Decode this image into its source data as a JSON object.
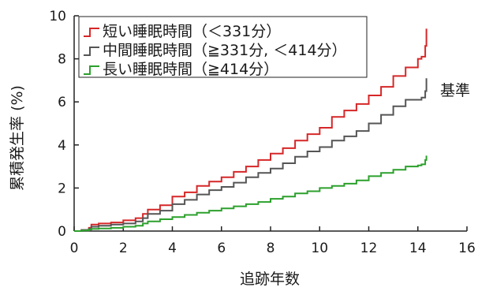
{
  "chart_data": {
    "type": "line",
    "xlabel": "追跡年数",
    "ylabel": "累積発生率 (%)",
    "xlim": [
      0,
      16
    ],
    "ylim": [
      0,
      10
    ],
    "xticks": [
      "0",
      "2",
      "4",
      "6",
      "8",
      "10",
      "12",
      "14",
      "16"
    ],
    "yticks": [
      "0",
      "2",
      "4",
      "6",
      "8",
      "10"
    ],
    "annotation": "基準",
    "legend_position": "top-left",
    "grid": false,
    "series": [
      {
        "name": "短い睡眠時間（＜331分）",
        "color": "#d62728",
        "x": [
          0,
          0.3,
          0.6,
          0.7,
          1.0,
          1.5,
          2.0,
          2.5,
          2.8,
          3.0,
          3.5,
          4.0,
          4.5,
          5.0,
          5.5,
          6.0,
          6.5,
          7.0,
          7.5,
          8.0,
          8.5,
          9.0,
          9.5,
          10.0,
          10.5,
          11.0,
          11.5,
          12.0,
          12.5,
          13.0,
          13.5,
          14.0,
          14.15,
          14.3,
          14.35
        ],
        "values": [
          0,
          0.05,
          0.15,
          0.3,
          0.35,
          0.4,
          0.5,
          0.6,
          0.8,
          1.0,
          1.2,
          1.6,
          1.8,
          2.1,
          2.3,
          2.5,
          2.75,
          3.0,
          3.3,
          3.6,
          3.85,
          4.2,
          4.5,
          4.8,
          5.3,
          5.6,
          5.9,
          6.3,
          6.7,
          7.2,
          7.6,
          8.0,
          8.1,
          8.6,
          9.4
        ]
      },
      {
        "name": "中間睡眠時間（≧331分, ＜414分）",
        "color": "#555555",
        "x": [
          0,
          0.3,
          0.6,
          0.7,
          1.0,
          1.5,
          2.0,
          2.5,
          2.8,
          3.0,
          3.5,
          4.0,
          4.5,
          5.0,
          5.5,
          6.0,
          6.5,
          7.0,
          7.5,
          8.0,
          8.5,
          9.0,
          9.5,
          10.0,
          10.5,
          11.0,
          11.5,
          12.0,
          12.5,
          13.0,
          13.5,
          14.0,
          14.15,
          14.3,
          14.35
        ],
        "values": [
          0,
          0.05,
          0.1,
          0.2,
          0.25,
          0.3,
          0.35,
          0.45,
          0.6,
          0.8,
          0.95,
          1.25,
          1.45,
          1.7,
          1.9,
          2.05,
          2.25,
          2.5,
          2.7,
          2.9,
          3.15,
          3.45,
          3.7,
          3.9,
          4.2,
          4.4,
          4.65,
          5.0,
          5.4,
          5.8,
          6.1,
          6.1,
          6.2,
          6.5,
          7.1
        ]
      },
      {
        "name": "長い睡眠時間（≧414分）",
        "color": "#2ca02c",
        "x": [
          0,
          0.3,
          0.6,
          0.7,
          1.0,
          1.5,
          2.0,
          2.5,
          2.8,
          3.0,
          3.5,
          4.0,
          4.5,
          5.0,
          5.5,
          6.0,
          6.5,
          7.0,
          7.5,
          8.0,
          8.5,
          9.0,
          9.5,
          10.0,
          10.5,
          11.0,
          11.5,
          12.0,
          12.5,
          13.0,
          13.5,
          14.0,
          14.15,
          14.3,
          14.35
        ],
        "values": [
          0,
          0.03,
          0.07,
          0.1,
          0.12,
          0.15,
          0.2,
          0.25,
          0.35,
          0.45,
          0.55,
          0.65,
          0.75,
          0.85,
          0.95,
          1.05,
          1.15,
          1.25,
          1.35,
          1.5,
          1.6,
          1.75,
          1.85,
          2.0,
          2.1,
          2.2,
          2.35,
          2.55,
          2.7,
          2.85,
          3.0,
          3.05,
          3.1,
          3.3,
          3.5
        ]
      }
    ]
  }
}
